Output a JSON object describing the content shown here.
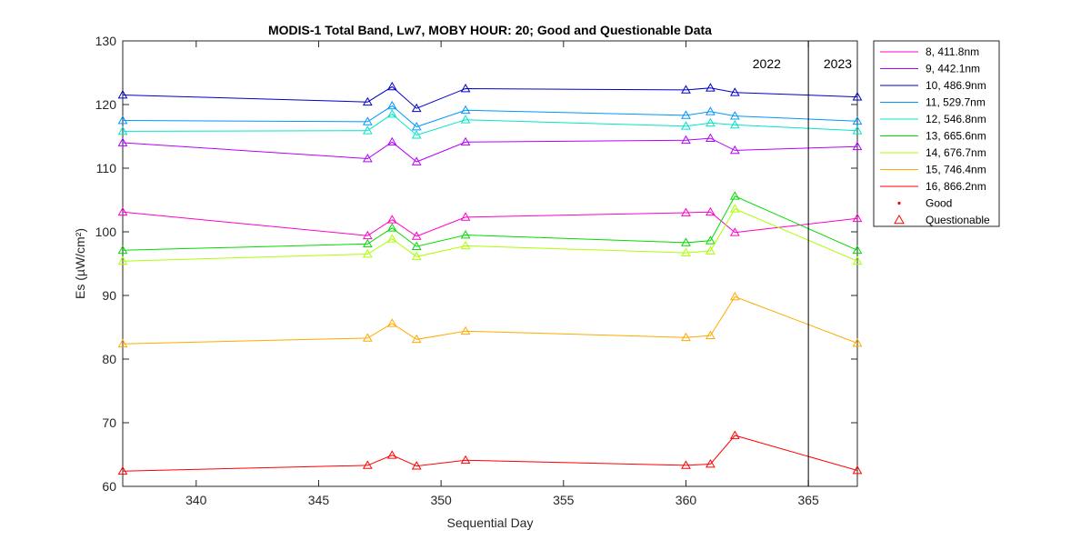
{
  "chart_data": {
    "type": "line",
    "title": "MODIS-1 Total Band,  Lw7, MOBY HOUR: 20;  Good and Questionable Data",
    "xlabel": "Sequential Day",
    "ylabel": "Es (µW/cm²)",
    "xlim": [
      337,
      367
    ],
    "ylim": [
      60,
      130
    ],
    "xticks": [
      340,
      345,
      350,
      355,
      360,
      365
    ],
    "yticks": [
      60,
      70,
      80,
      90,
      100,
      110,
      120,
      130
    ],
    "grid": false,
    "legend_position": "outside-top-right",
    "x": [
      337,
      347,
      348,
      349,
      351,
      360,
      361,
      362,
      367
    ],
    "series": [
      {
        "name": "8, 411.8nm",
        "color": "#ff00c8",
        "values": [
          103.1,
          99.4,
          101.9,
          99.3,
          102.3,
          103.0,
          103.1,
          99.9,
          102.1
        ]
      },
      {
        "name": "9, 442.1nm",
        "color": "#b400ff",
        "values": [
          114.0,
          111.5,
          114.1,
          111.0,
          114.1,
          114.4,
          114.7,
          112.8,
          113.4
        ]
      },
      {
        "name": "10, 486.9nm",
        "color": "#0000c8",
        "values": [
          121.5,
          120.4,
          122.8,
          119.4,
          122.5,
          122.3,
          122.6,
          121.9,
          121.2
        ]
      },
      {
        "name": "11, 529.7nm",
        "color": "#0096ff",
        "values": [
          117.5,
          117.3,
          119.8,
          116.5,
          119.1,
          118.3,
          118.9,
          118.2,
          117.4
        ]
      },
      {
        "name": "12, 546.8nm",
        "color": "#00e6c8",
        "values": [
          115.8,
          115.9,
          118.5,
          115.2,
          117.6,
          116.6,
          117.1,
          116.8,
          115.9
        ]
      },
      {
        "name": "13, 665.6nm",
        "color": "#00dc00",
        "values": [
          97.1,
          98.1,
          100.6,
          97.7,
          99.5,
          98.3,
          98.6,
          105.6,
          97.1
        ]
      },
      {
        "name": "14, 676.7nm",
        "color": "#aaff00",
        "values": [
          95.4,
          96.5,
          98.9,
          96.1,
          97.8,
          96.7,
          97.0,
          103.6,
          95.4
        ]
      },
      {
        "name": "15, 746.4nm",
        "color": "#ffaa00",
        "values": [
          82.4,
          83.3,
          85.6,
          83.1,
          84.4,
          83.4,
          83.7,
          89.8,
          82.5
        ]
      },
      {
        "name": "16, 866.2nm",
        "color": "#ff0000",
        "values": [
          62.4,
          63.3,
          64.9,
          63.2,
          64.1,
          63.3,
          63.5,
          68.0,
          62.5
        ]
      }
    ],
    "marker_legend": [
      {
        "name": "Good",
        "marker": "dot",
        "color": "#ff0000"
      },
      {
        "name": "Questionable",
        "marker": "triangle",
        "color": "#ff0000"
      }
    ],
    "vline": {
      "x": 365,
      "color": "#000000"
    },
    "annotations": [
      {
        "text": "2022",
        "x": 363.3
      },
      {
        "text": "2023",
        "x": 366.2
      }
    ]
  }
}
